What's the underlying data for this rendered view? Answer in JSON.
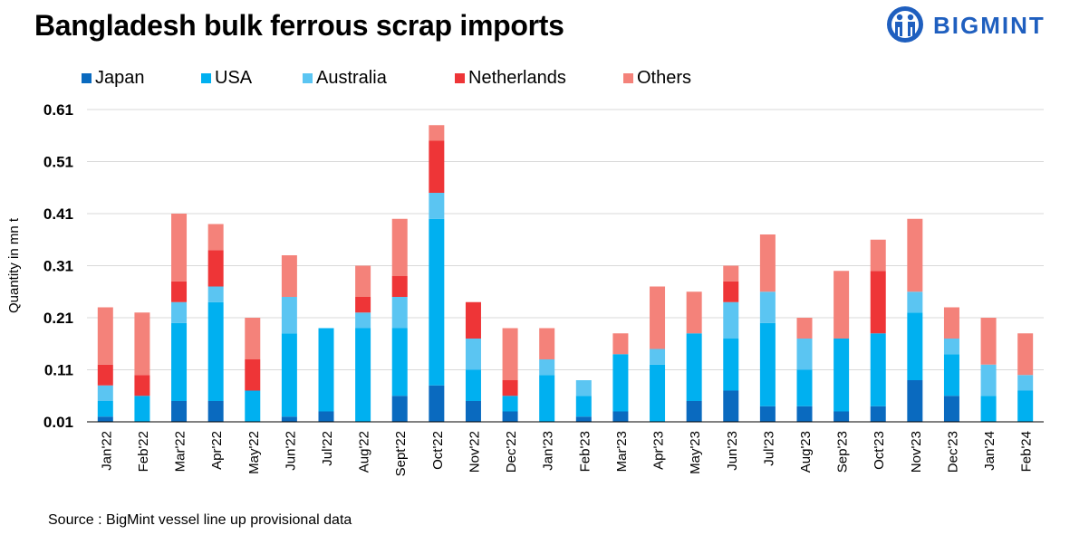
{
  "header": {
    "title": "Bangladesh bulk ferrous scrap imports",
    "logo_text": "BIGMINT"
  },
  "colors": {
    "Japan": "#0a6abf",
    "USA": "#00b0f0",
    "Australia": "#5bc5f2",
    "Netherlands": "#ee3537",
    "Others": "#f4827a"
  },
  "chart_data": {
    "type": "bar",
    "stacked": true,
    "title": "Bangladesh bulk ferrous scrap imports",
    "xlabel": "",
    "ylabel": "Quantity in mn t",
    "ylim": [
      0.01,
      0.61
    ],
    "yticks": [
      "0.61",
      "0.51",
      "0.41",
      "0.31",
      "0.21",
      "0.11",
      "0.01"
    ],
    "grid": true,
    "legend_position": "top",
    "categories": [
      "Jan'22",
      "Feb'22",
      "Mar'22",
      "Apr'22",
      "May'22",
      "Jun'22",
      "Jul'22",
      "Aug'22",
      "Sept'22",
      "Oct'22",
      "Nov'22",
      "Dec'22",
      "Jan'23",
      "Feb'23",
      "Mar'23",
      "Apr'23",
      "May'23",
      "Jun'23",
      "Jul'23",
      "Aug'23",
      "Sep'23",
      "Oct'23",
      "Nov'23",
      "Dec'23",
      "Jan'24",
      "Feb'24"
    ],
    "series": [
      {
        "name": "Japan",
        "values": [
          0.01,
          0.0,
          0.04,
          0.04,
          0.0,
          0.01,
          0.02,
          0.0,
          0.05,
          0.07,
          0.04,
          0.02,
          0.0,
          0.01,
          0.02,
          0.0,
          0.04,
          0.06,
          0.03,
          0.03,
          0.02,
          0.03,
          0.08,
          0.05,
          0.0,
          0.0
        ]
      },
      {
        "name": "USA",
        "values": [
          0.03,
          0.05,
          0.15,
          0.19,
          0.06,
          0.16,
          0.16,
          0.18,
          0.13,
          0.32,
          0.06,
          0.03,
          0.09,
          0.04,
          0.11,
          0.11,
          0.13,
          0.1,
          0.16,
          0.07,
          0.14,
          0.14,
          0.13,
          0.08,
          0.05,
          0.06
        ]
      },
      {
        "name": "Australia",
        "values": [
          0.03,
          0.0,
          0.04,
          0.03,
          0.0,
          0.07,
          0.0,
          0.03,
          0.06,
          0.05,
          0.06,
          0.0,
          0.03,
          0.03,
          0.0,
          0.03,
          0.0,
          0.07,
          0.06,
          0.06,
          0.0,
          0.0,
          0.04,
          0.03,
          0.06,
          0.03
        ]
      },
      {
        "name": "Netherlands",
        "values": [
          0.04,
          0.04,
          0.04,
          0.07,
          0.06,
          0.0,
          0.0,
          0.03,
          0.04,
          0.1,
          0.07,
          0.03,
          0.0,
          0.0,
          0.0,
          0.0,
          0.0,
          0.04,
          0.0,
          0.0,
          0.0,
          0.12,
          0.0,
          0.0,
          0.0,
          0.0
        ]
      },
      {
        "name": "Others",
        "values": [
          0.11,
          0.12,
          0.13,
          0.05,
          0.08,
          0.08,
          0.0,
          0.06,
          0.11,
          0.03,
          0.0,
          0.1,
          0.06,
          0.0,
          0.04,
          0.12,
          0.08,
          0.03,
          0.11,
          0.04,
          0.13,
          0.06,
          0.14,
          0.06,
          0.09,
          0.08
        ]
      }
    ]
  },
  "footer": {
    "source": "Source : BigMint vessel line up provisional data"
  }
}
